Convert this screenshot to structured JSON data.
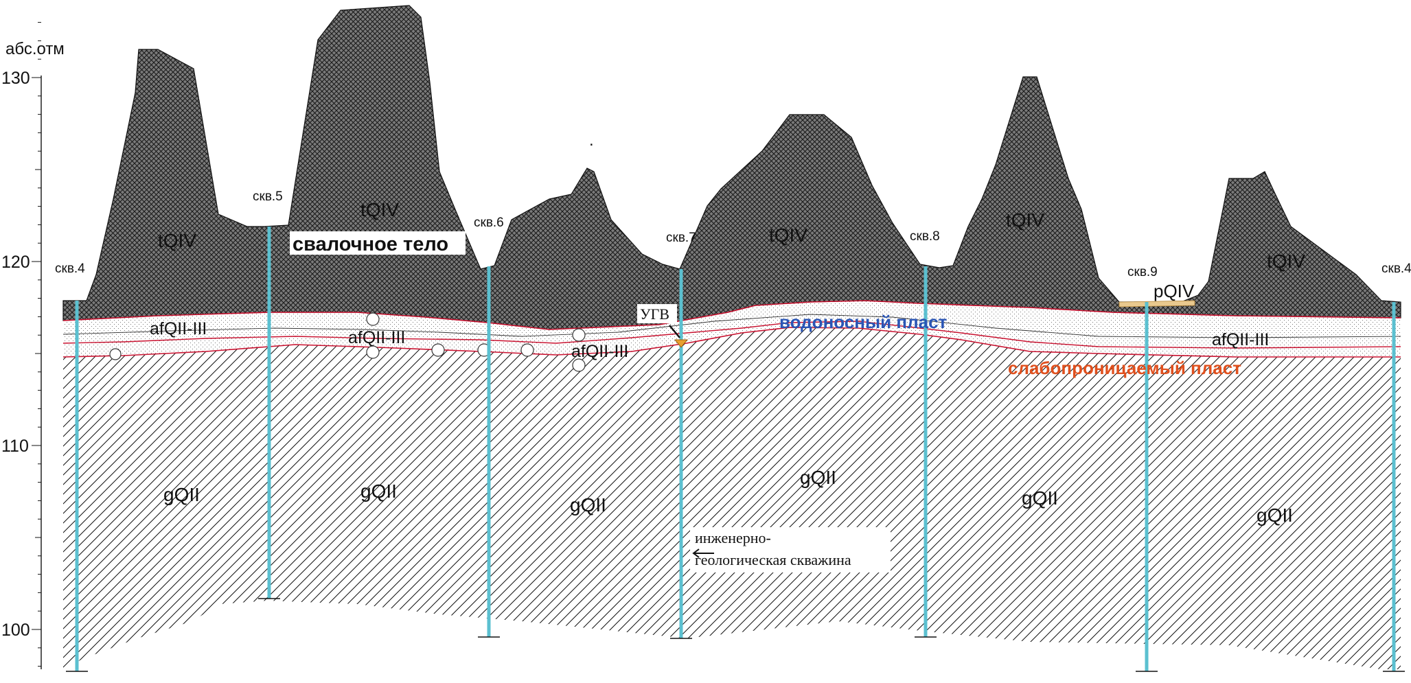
{
  "axis": {
    "title": "абс.отм",
    "ticks": [
      {
        "label": "130",
        "value": 130
      },
      {
        "label": "120",
        "value": 120
      },
      {
        "label": "110",
        "value": 110
      },
      {
        "label": "100",
        "value": 100
      }
    ],
    "range": [
      98,
      133
    ]
  },
  "wells": [
    {
      "label": "скв.4"
    },
    {
      "label": "скв.5"
    },
    {
      "label": "скв.6"
    },
    {
      "label": "скв.7"
    },
    {
      "label": "скв.8"
    },
    {
      "label": "скв.9"
    },
    {
      "label": "скв.4"
    }
  ],
  "layers": {
    "landfill_index": "tQIV",
    "landfill_title": "свалочное тело",
    "soil_index": "pQIV",
    "sand_index": "afQII-III",
    "moraine_index": "gQII"
  },
  "annotations": {
    "aquifer": "водоносный пласт",
    "aquitard": "слабопроницаемый пласт",
    "groundwater": "УГВ",
    "borehole_line1": "инженерно-",
    "borehole_line2": "геологическая скважина",
    "dot": "."
  },
  "colors": {
    "landfill_fill": "#7a7a7a",
    "sand_fill": "#ffffff",
    "boundary_red": "#c8102e",
    "well_cyan": "#5bc0d0",
    "aquifer_text": "#2a55b5",
    "aquitard_text": "#e0501e"
  }
}
